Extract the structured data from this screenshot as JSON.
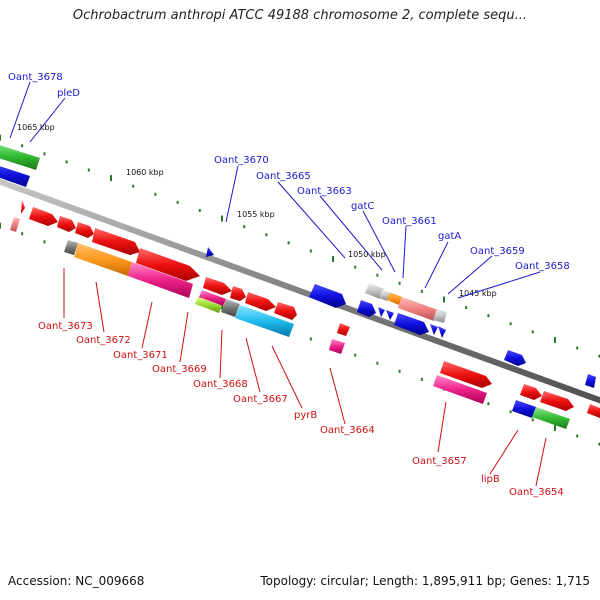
{
  "title": "Ochrobactrum anthropi ATCC 49188 chromosome 2, complete sequ...",
  "footer": {
    "accession": "Accession: NC_009668",
    "stats": "Topology: circular; Length: 1,895,911 bp; Genes: 1,715"
  },
  "colors": {
    "backbone": "#8a8a8a",
    "tick": "#2a7a2a",
    "label_top": "#1a1acc",
    "label_bottom": "#cc1111"
  },
  "kbp_marks": [
    "1065 kbp",
    "1060 kbp",
    "1055 kbp",
    "1050 kbp",
    "1045 kbp"
  ],
  "labels_top": [
    "Oant_3678",
    "pleD",
    "Oant_3670",
    "Oant_3665",
    "Oant_3663",
    "gatC",
    "Oant_3661",
    "gatA",
    "Oant_3659",
    "Oant_3658"
  ],
  "labels_bottom": [
    "Oant_3673",
    "Oant_3672",
    "Oant_3671",
    "Oant_3669",
    "Oant_3668",
    "Oant_3667",
    "pyrB",
    "Oant_3664",
    "Oant_3657",
    "lipB",
    "Oant_3654"
  ]
}
